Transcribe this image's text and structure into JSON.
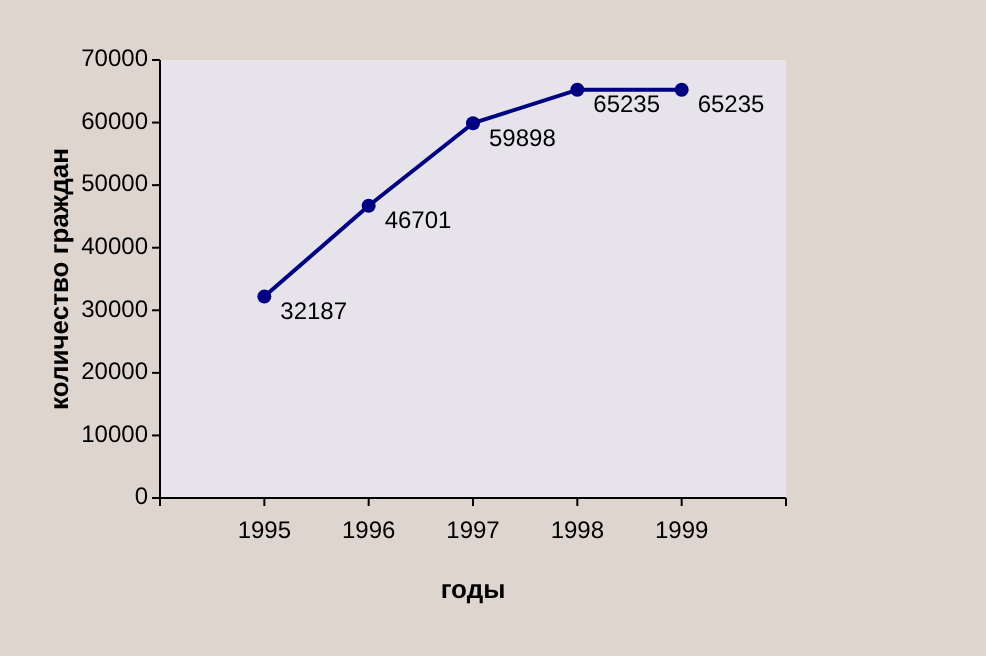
{
  "chart_data": {
    "type": "line",
    "xlabel": "годы",
    "ylabel": "количество граждан",
    "x": [
      1995,
      1996,
      1997,
      1998,
      1999
    ],
    "series": [
      {
        "color": "#000080",
        "values": [
          32187,
          46701,
          59898,
          65235,
          65235
        ]
      }
    ],
    "xlim": [
      1994,
      2000
    ],
    "xticks": [
      {
        "value": 1994,
        "label": null
      },
      1995,
      1996,
      1997,
      1998,
      1999,
      {
        "value": 2000,
        "label": null
      }
    ],
    "ylim": [
      0,
      70000
    ],
    "yticks": [
      0,
      10000,
      20000,
      30000,
      40000,
      50000,
      60000,
      70000
    ],
    "marker": "circle",
    "line_style": "solid",
    "data_labels": true,
    "grid": false
  }
}
